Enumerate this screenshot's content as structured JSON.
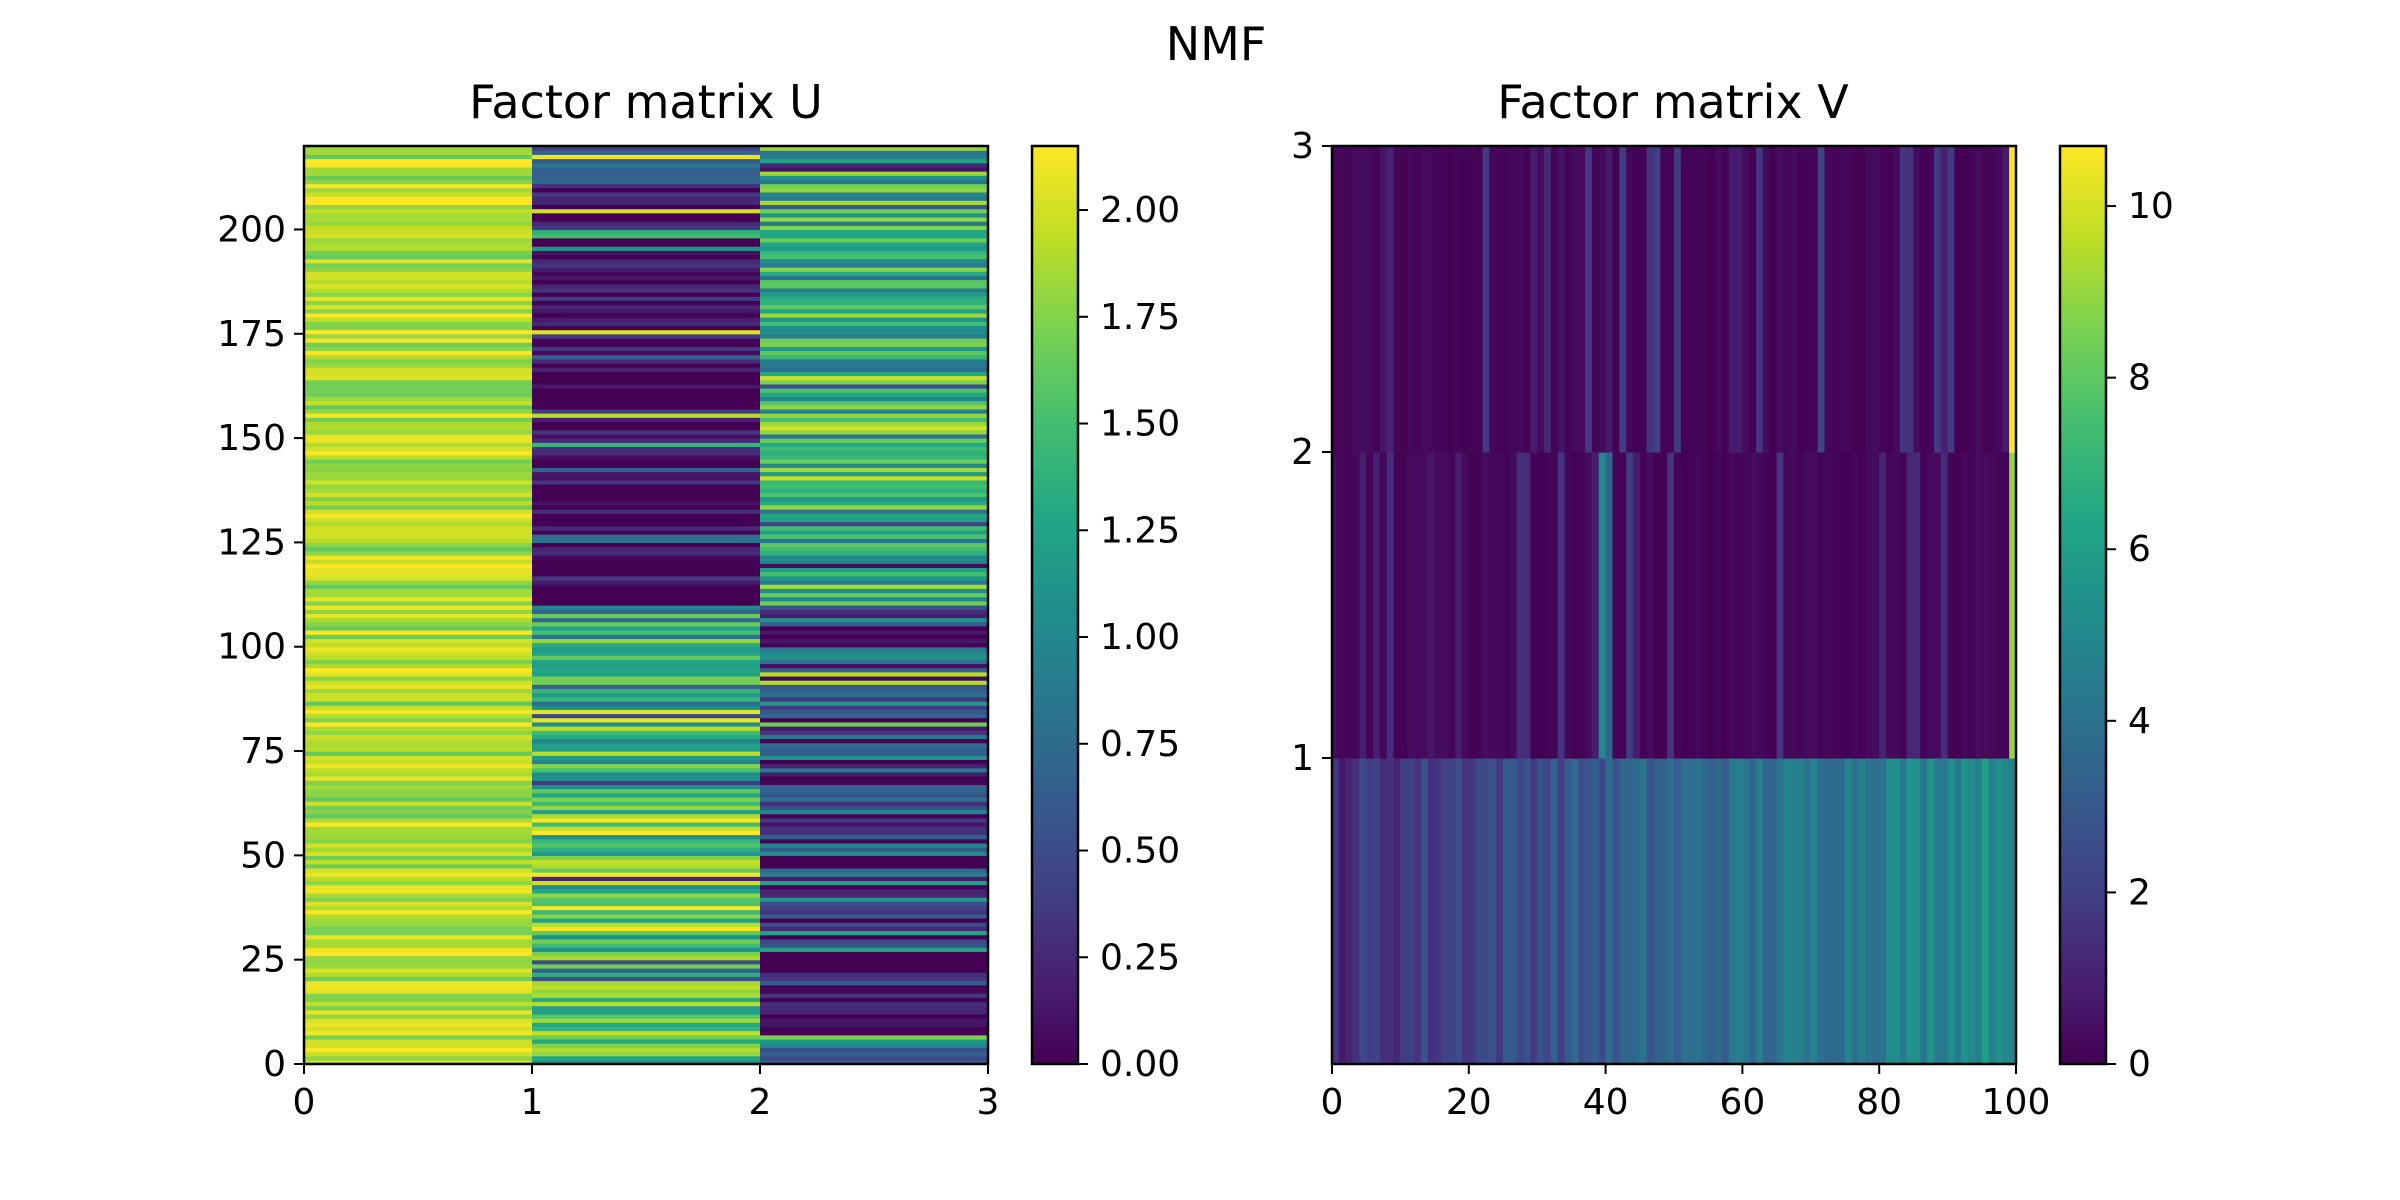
{
  "figure_title": "NMF",
  "chart_data": [
    {
      "type": "heatmap",
      "title": "Factor matrix U",
      "colormap": "viridis",
      "rows": 220,
      "cols": 3,
      "xlim": [
        0,
        3
      ],
      "ylim": [
        0,
        220
      ],
      "xticks": [
        "0",
        "1",
        "2",
        "3"
      ],
      "yticks": [
        "0",
        "25",
        "50",
        "75",
        "100",
        "125",
        "150",
        "175",
        "200"
      ],
      "colorbar": {
        "vmin": 0.0,
        "vmax": 2.15,
        "ticks": [
          "0.00",
          "0.25",
          "0.50",
          "0.75",
          "1.00",
          "1.25",
          "1.50",
          "1.75",
          "2.00"
        ]
      },
      "column_profiles": [
        {
          "column": 0,
          "mean": 1.9,
          "spread": 0.28,
          "note": "uniformly high, 1.6-2.15"
        },
        {
          "column": 1,
          "bands": [
            {
              "rows": [
                0,
                85
              ],
              "level": 1.55,
              "spread": 0.6
            },
            {
              "rows": [
                85,
                110
              ],
              "level": 1.25,
              "spread": 0.6
            },
            {
              "rows": [
                110,
                210
              ],
              "level": 0.05,
              "spread": 0.35
            },
            {
              "rows": [
                210,
                220
              ],
              "level": 0.5,
              "spread": 0.4
            }
          ]
        },
        {
          "column": 2,
          "bands": [
            {
              "rows": [
                0,
                45
              ],
              "level": 0.25,
              "spread": 0.55
            },
            {
              "rows": [
                45,
                110
              ],
              "level": 0.45,
              "spread": 0.7
            },
            {
              "rows": [
                110,
                220
              ],
              "level": 1.35,
              "spread": 0.55
            }
          ]
        }
      ]
    },
    {
      "type": "heatmap",
      "title": "Factor matrix V",
      "colormap": "viridis",
      "rows": 3,
      "cols": 100,
      "xlim": [
        0,
        100
      ],
      "ylim": [
        0,
        3
      ],
      "xticks": [
        "0",
        "20",
        "40",
        "60",
        "80",
        "100"
      ],
      "yticks": [
        "1",
        "2",
        "3"
      ],
      "colorbar": {
        "vmin": 0,
        "vmax": 10.7,
        "ticks": [
          "0",
          "2",
          "4",
          "6",
          "8",
          "10"
        ]
      },
      "row_profiles": [
        {
          "row": 0,
          "pattern": "rising from about 1.5 at left to about 5.5 at right",
          "start": 1.5,
          "end": 5.5
        },
        {
          "row": 1,
          "pattern": "mostly near 0 with sparse bars; bright stripe near col 39 (about 5); col 99 about 9",
          "hot": [
            [
              39,
              5.0
            ],
            [
              40,
              3.5
            ],
            [
              99,
              9.0
            ]
          ]
        },
        {
          "row": 2,
          "pattern": "mostly near 0 with sparse faint bars; col 99 about 10.7",
          "hot": [
            [
              99,
              10.7
            ]
          ]
        }
      ]
    }
  ]
}
